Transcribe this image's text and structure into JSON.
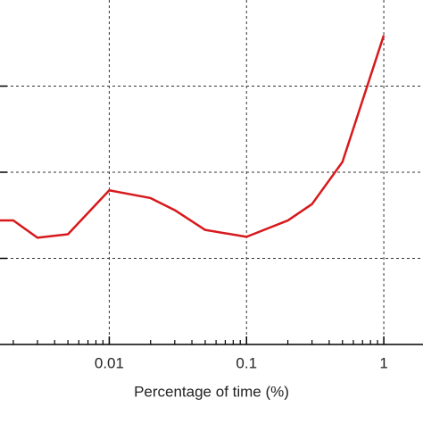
{
  "chart_data": {
    "type": "line",
    "xlabel": "Percentage of time (%)",
    "xscale": "log",
    "grid": true,
    "x": [
      0.0016,
      0.002,
      0.003,
      0.005,
      0.01,
      0.02,
      0.03,
      0.05,
      0.1,
      0.2,
      0.3,
      0.5,
      1
    ],
    "series": [
      {
        "color": "#d7191c",
        "values": [
          1.44,
          1.44,
          1.24,
          1.28,
          1.79,
          1.7,
          1.56,
          1.33,
          1.25,
          1.44,
          1.63,
          2.12,
          3.59
        ]
      }
    ],
    "xlim": [
      0.0016,
      1.93
    ],
    "ylim": [
      0,
      4
    ],
    "xticks": [
      0.01,
      0.1,
      1
    ],
    "minor_xticks": [
      0.002,
      0.003,
      0.004,
      0.005,
      0.006,
      0.007,
      0.008,
      0.009,
      0.02,
      0.03,
      0.04,
      0.05,
      0.06,
      0.07,
      0.08,
      0.09,
      0.2,
      0.3,
      0.4,
      0.5,
      0.6,
      0.7,
      0.8,
      0.9
    ],
    "ygrid": [
      1,
      2,
      3
    ]
  }
}
